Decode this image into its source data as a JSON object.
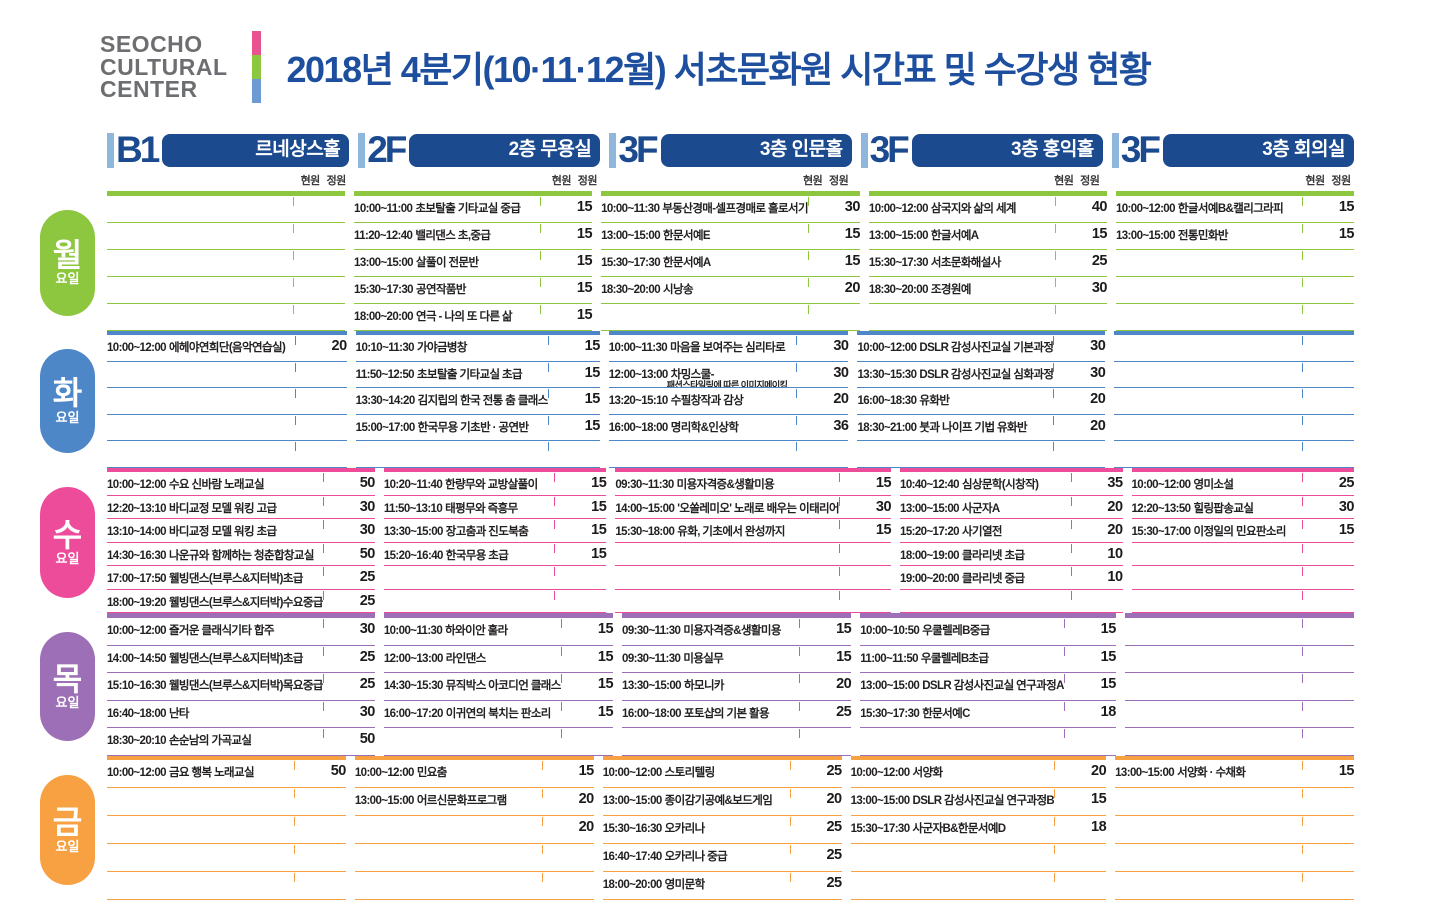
{
  "logo": {
    "lines": [
      "SEOCHO",
      "CULTURAL",
      "CENTER"
    ],
    "bar_colors": [
      "#e8538f",
      "#8dc63f",
      "#6b9bd2"
    ]
  },
  "title": "2018년 4분기(10·11·12월) 서초문화원 시간표 및 수강생 현황",
  "capacity_labels": {
    "current": "현원",
    "capacity": "정원"
  },
  "columns": [
    {
      "floor": "B1",
      "room": "르네상스홀"
    },
    {
      "floor": "2F",
      "room": "2층 무용실"
    },
    {
      "floor": "3F",
      "room": "3층 인문홀"
    },
    {
      "floor": "3F",
      "room": "3층 홍익홀"
    },
    {
      "floor": "3F",
      "room": "3층 회의실"
    }
  ],
  "days": [
    {
      "name": "월",
      "suffix": "요일",
      "color": "#8dc63f",
      "rows": 5,
      "cells": [
        [],
        [
          {
            "time": "10:00~11:00",
            "title": "초보탈출 기타교실 중급",
            "capacity": "15"
          },
          {
            "time": "11:20~12:40",
            "title": "밸리댄스 초,중급",
            "capacity": "15"
          },
          {
            "time": "13:00~15:00",
            "title": "살풀이 전문반",
            "capacity": "15"
          },
          {
            "time": "15:30~17:30",
            "title": "공연작품반",
            "capacity": "15"
          },
          {
            "time": "18:00~20:00",
            "title": "연극 - 나의 또 다른 삶",
            "capacity": "15"
          }
        ],
        [
          {
            "time": "10:00~11:30",
            "title": "부동산경매-셀프경매로 홀로서기",
            "capacity": "30"
          },
          {
            "time": "13:00~15:00",
            "title": "한문서예E",
            "capacity": "15"
          },
          {
            "time": "15:30~17:30",
            "title": "한문서예A",
            "capacity": "15"
          },
          {
            "time": "18:30~20:00",
            "title": "시낭송",
            "capacity": "20"
          }
        ],
        [
          {
            "time": "10:00~12:00",
            "title": "삼국지와 삶의 세계",
            "capacity": "40"
          },
          {
            "time": "13:00~15:00",
            "title": "한글서예A",
            "capacity": "15"
          },
          {
            "time": "15:30~17:30",
            "title": "서초문화해설사",
            "capacity": "25"
          },
          {
            "time": "18:30~20:00",
            "title": "조경원예",
            "capacity": "30"
          }
        ],
        [
          {
            "time": "10:00~12:00",
            "title": "한글서예B&캘리그라피",
            "capacity": "15"
          },
          {
            "time": "13:00~15:00",
            "title": "전통민화반",
            "capacity": "15"
          }
        ]
      ]
    },
    {
      "name": "화",
      "suffix": "요일",
      "color": "#4d87c7",
      "rows": 5,
      "cells": [
        [
          {
            "time": "10:00~12:00",
            "title": "에헤야연희단(음악연습실)",
            "capacity": "20"
          }
        ],
        [
          {
            "time": "10:10~11:30",
            "title": "가야금병창",
            "capacity": "15"
          },
          {
            "time": "11:50~12:50",
            "title": "초보탈출 기타교실 초급",
            "capacity": "15"
          },
          {
            "time": "13:30~14:20",
            "title": "김지립의 한국 전통 춤 클래스",
            "capacity": "15"
          },
          {
            "time": "15:00~17:00",
            "title": "한국무용 기초반 · 공연반",
            "capacity": "15"
          }
        ],
        [
          {
            "time": "10:00~11:30",
            "title": "마음을 보여주는 심리타로",
            "capacity": "30"
          },
          {
            "time": "12:00~13:00",
            "title": "차밍스쿨-",
            "subtitle": "패션스타일링에 따른 이미지메이킹",
            "capacity": "30"
          },
          {
            "time": "13:20~15:10",
            "title": "수필창작과 감상",
            "capacity": "20"
          },
          {
            "time": "16:00~18:00",
            "title": "명리학&인상학",
            "capacity": "36"
          }
        ],
        [
          {
            "time": "10:00~12:00",
            "title": "DSLR 감성사진교실 기본과정",
            "capacity": "30"
          },
          {
            "time": "13:30~15:30",
            "title": "DSLR 감성사진교실 심화과정",
            "capacity": "30"
          },
          {
            "time": "16:00~18:30",
            "title": "유화반",
            "capacity": "20"
          },
          {
            "time": "18:30~21:00",
            "title": "붓과 나이프 기법 유화반",
            "capacity": "20"
          }
        ],
        []
      ]
    },
    {
      "name": "수",
      "suffix": "요일",
      "color": "#ed4c9b",
      "rows": 6,
      "cells": [
        [
          {
            "time": "10:00~12:00",
            "title": "수요 신바람 노래교실",
            "capacity": "50"
          },
          {
            "time": "12:20~13:10",
            "title": "바디교정 모델 워킹 고급",
            "capacity": "30"
          },
          {
            "time": "13:10~14:00",
            "title": "바디교정 모델 워킹 초급",
            "capacity": "30"
          },
          {
            "time": "14:30~16:30",
            "title": "나운규와 함께하는 청춘합창교실",
            "capacity": "50"
          },
          {
            "time": "17:00~17:50",
            "title": "웰빙댄스(브루스&지터박)초급",
            "capacity": "25"
          },
          {
            "time": "18:00~19:20",
            "title": "웰빙댄스(브루스&지터박)수요중급",
            "capacity": "25"
          }
        ],
        [
          {
            "time": "10:20~11:40",
            "title": "한량무와 교방살풀이",
            "capacity": "15"
          },
          {
            "time": "11:50~13:10",
            "title": "태평무와 즉흥무",
            "capacity": "15"
          },
          {
            "time": "13:30~15:00",
            "title": "장고춤과 진도북춤",
            "capacity": "15"
          },
          {
            "time": "15:20~16:40",
            "title": "한국무용 초급",
            "capacity": "15"
          }
        ],
        [
          {
            "time": "09:30~11:30",
            "title": "미용자격증&생활미용",
            "capacity": "15"
          },
          {
            "time": "14:00~15:00",
            "title": "'오쏠레미오' 노래로 배우는 이태리어",
            "capacity": "30"
          },
          {
            "time": "15:30~18:00",
            "title": "유화, 기초에서 완성까지",
            "capacity": "15"
          }
        ],
        [
          {
            "time": "10:40~12:40",
            "title": "심상문학(시창작)",
            "capacity": "35"
          },
          {
            "time": "13:00~15:00",
            "title": "사군자A",
            "capacity": "20"
          },
          {
            "time": "15:20~17:20",
            "title": "사기열전",
            "capacity": "20"
          },
          {
            "time": "18:00~19:00",
            "title": "클라리넷 초급",
            "capacity": "10"
          },
          {
            "time": "19:00~20:00",
            "title": "클라리넷 중급",
            "capacity": "10"
          }
        ],
        [
          {
            "time": "10:00~12:00",
            "title": "영미소설",
            "capacity": "25"
          },
          {
            "time": "12:20~13:50",
            "title": "힐링팝송교실",
            "capacity": "30"
          },
          {
            "time": "15:30~17:00",
            "title": "이정일의 민요판소리",
            "capacity": "15"
          }
        ]
      ]
    },
    {
      "name": "목",
      "suffix": "요일",
      "color": "#9d6fb7",
      "rows": 5,
      "cells": [
        [
          {
            "time": "10:00~12:00",
            "title": "즐거운 클래식기타 합주",
            "capacity": "30"
          },
          {
            "time": "14:00~14:50",
            "title": "웰빙댄스(브루스&지터박)초급",
            "capacity": "25"
          },
          {
            "time": "15:10~16:30",
            "title": "웰빙댄스(브루스&지터박)목요중급",
            "capacity": "25"
          },
          {
            "time": "16:40~18:00",
            "title": "난타",
            "capacity": "30"
          },
          {
            "time": "18:30~20:10",
            "title": "손순남의 가곡교실",
            "capacity": "50"
          }
        ],
        [
          {
            "time": "10:00~11:30",
            "title": "하와이안 훌라",
            "capacity": "15"
          },
          {
            "time": "12:00~13:00",
            "title": "라인댄스",
            "capacity": "15"
          },
          {
            "time": "14:30~15:30",
            "title": "뮤직박스 아코디언 클래스",
            "capacity": "15"
          },
          {
            "time": "16:00~17:20",
            "title": "이귀연의 북치는 판소리",
            "capacity": "15"
          }
        ],
        [
          {
            "time": "09:30~11:30",
            "title": "미용자격증&생활미용",
            "capacity": "15"
          },
          {
            "time": "09:30~11:30",
            "title": "미용실무",
            "capacity": "15"
          },
          {
            "time": "13:30~15:00",
            "title": "하모니카",
            "capacity": "20"
          },
          {
            "time": "16:00~18:00",
            "title": "포토샵의 기본 활용",
            "capacity": "25"
          }
        ],
        [
          {
            "time": "10:00~10:50",
            "title": "우쿨렐레B중급",
            "capacity": "15"
          },
          {
            "time": "11:00~11:50",
            "title": "우쿨렐레B초급",
            "capacity": "15"
          },
          {
            "time": "13:00~15:00",
            "title": "DSLR 감성사진교실 연구과정A",
            "capacity": "15"
          },
          {
            "time": "15:30~17:30",
            "title": "한문서예C",
            "capacity": "18"
          }
        ],
        []
      ]
    },
    {
      "name": "금",
      "suffix": "요일",
      "color": "#f7a143",
      "rows": 5,
      "cells": [
        [
          {
            "time": "10:00~12:00",
            "title": "금요 행복 노래교실",
            "capacity": "50"
          }
        ],
        [
          {
            "time": "10:00~12:00",
            "title": "민요춤",
            "capacity": "15"
          },
          {
            "time": "13:00~15:00",
            "title": "어르신문화프로그램",
            "capacity": "20"
          },
          {
            "time": "",
            "title": "",
            "capacity": "20"
          }
        ],
        [
          {
            "time": "10:00~12:00",
            "title": "스토리텔링",
            "capacity": "25"
          },
          {
            "time": "13:00~15:00",
            "title": "종이감기공예&보드게임",
            "capacity": "20"
          },
          {
            "time": "15:30~16:30",
            "title": "오카리나",
            "capacity": "25"
          },
          {
            "time": "16:40~17:40",
            "title": "오카리나 중급",
            "capacity": "25"
          },
          {
            "time": "18:00~20:00",
            "title": "영미문학",
            "capacity": "25"
          }
        ],
        [
          {
            "time": "10:00~12:00",
            "title": "서양화",
            "capacity": "20"
          },
          {
            "time": "13:00~15:00",
            "title": "DSLR 감성사진교실 연구과정B",
            "capacity": "15"
          },
          {
            "time": "15:30~17:30",
            "title": "사군자B&한문서예D",
            "capacity": "18"
          }
        ],
        [
          {
            "time": "13:00~15:00",
            "title": "서양화 · 수채화",
            "capacity": "15"
          }
        ]
      ]
    }
  ]
}
